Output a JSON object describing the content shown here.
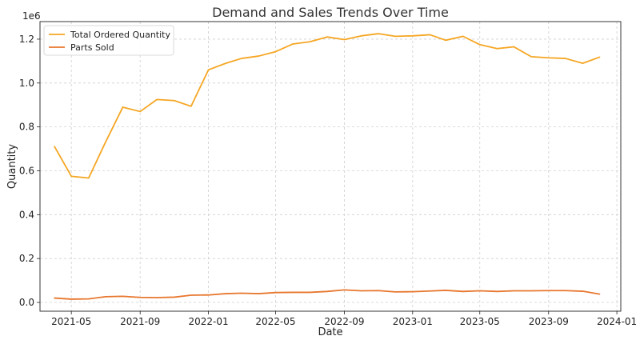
{
  "chart_data": {
    "type": "line",
    "title": "Demand and Sales Trends Over Time",
    "xlabel": "Date",
    "ylabel": "Quantity",
    "y_scale_label": "1e6",
    "ylim": [
      -0.04,
      1.28
    ],
    "xlim": [
      "2021-03-06",
      "2024-01-08"
    ],
    "grid": true,
    "legend_position": "top-left",
    "x_ticks": [
      "2021-05",
      "2021-09",
      "2022-01",
      "2022-05",
      "2022-09",
      "2023-01",
      "2023-05",
      "2023-09",
      "2024-01"
    ],
    "y_ticks": [
      "0.0",
      "0.2",
      "0.4",
      "0.6",
      "0.8",
      "1.0",
      "1.2"
    ],
    "y_tick_values": [
      0.0,
      0.2,
      0.4,
      0.6,
      0.8,
      1.0,
      1.2
    ],
    "x": [
      "2021-04",
      "2021-05",
      "2021-06",
      "2021-07",
      "2021-08",
      "2021-09",
      "2021-10",
      "2021-11",
      "2021-12",
      "2022-01",
      "2022-02",
      "2022-03",
      "2022-04",
      "2022-05",
      "2022-06",
      "2022-07",
      "2022-08",
      "2022-09",
      "2022-10",
      "2022-11",
      "2022-12",
      "2023-01",
      "2023-02",
      "2023-03",
      "2023-04",
      "2023-05",
      "2023-06",
      "2023-07",
      "2023-08",
      "2023-09",
      "2023-10",
      "2023-11",
      "2023-12"
    ],
    "series": [
      {
        "name": "Total Ordered Quantity",
        "color": "#f5a623",
        "values": [
          0.71,
          0.575,
          0.567,
          0.73,
          0.89,
          0.87,
          0.925,
          0.92,
          0.894,
          1.06,
          1.09,
          1.112,
          1.123,
          1.143,
          1.178,
          1.188,
          1.21,
          1.198,
          1.215,
          1.225,
          1.213,
          1.215,
          1.22,
          1.195,
          1.213,
          1.175,
          1.157,
          1.165,
          1.12,
          1.115,
          1.112,
          1.09,
          1.118
        ]
      },
      {
        "name": "Parts Sold",
        "color": "#e8772e",
        "values": [
          0.02,
          0.015,
          0.016,
          0.026,
          0.028,
          0.023,
          0.022,
          0.024,
          0.033,
          0.034,
          0.04,
          0.042,
          0.04,
          0.045,
          0.046,
          0.046,
          0.05,
          0.057,
          0.053,
          0.054,
          0.048,
          0.049,
          0.052,
          0.055,
          0.05,
          0.053,
          0.05,
          0.053,
          0.053,
          0.054,
          0.054,
          0.051,
          0.038
        ]
      }
    ]
  }
}
